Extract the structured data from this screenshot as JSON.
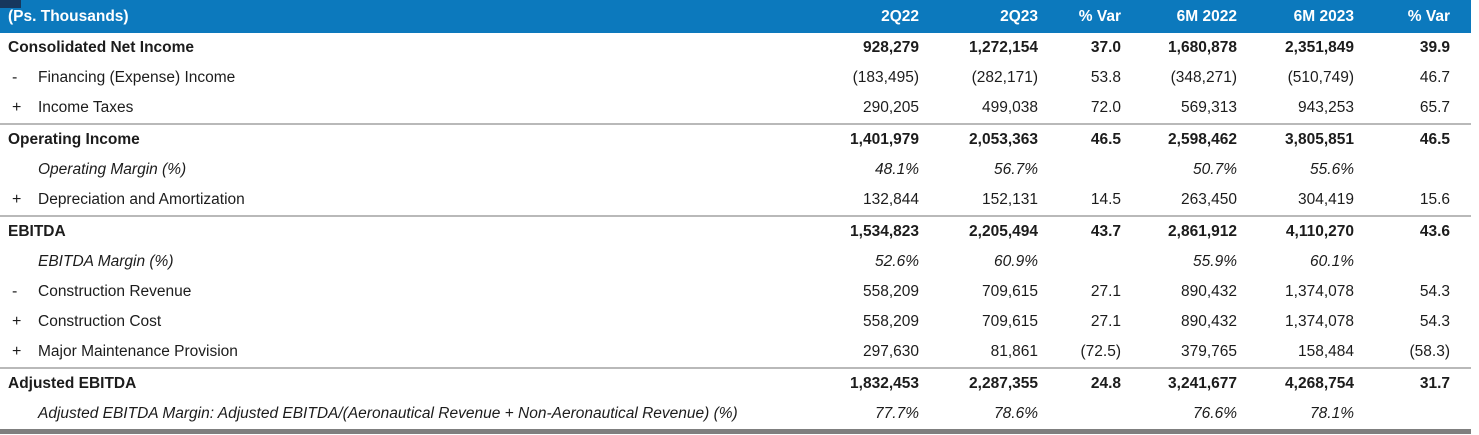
{
  "header": {
    "unit_label": "(Ps. Thousands)",
    "columns": [
      "2Q22",
      "2Q23",
      "% Var",
      "6M 2022",
      "6M 2023",
      "% Var"
    ]
  },
  "rows": [
    {
      "prefix": "",
      "label": "Consolidated Net Income",
      "emphasis": "bold",
      "separator_after": false,
      "values": [
        "928,279",
        "1,272,154",
        "37.0",
        "1,680,878",
        "2,351,849",
        "39.9"
      ]
    },
    {
      "prefix": "-",
      "label": "Financing (Expense) Income",
      "emphasis": "normal",
      "separator_after": false,
      "values": [
        "(183,495)",
        "(282,171)",
        "53.8",
        "(348,271)",
        "(510,749)",
        "46.7"
      ]
    },
    {
      "prefix": "+",
      "label": "Income Taxes",
      "emphasis": "normal",
      "separator_after": true,
      "values": [
        "290,205",
        "499,038",
        "72.0",
        "569,313",
        "943,253",
        "65.7"
      ]
    },
    {
      "prefix": "",
      "label": "Operating Income",
      "emphasis": "bold",
      "separator_after": false,
      "values": [
        "1,401,979",
        "2,053,363",
        "46.5",
        "2,598,462",
        "3,805,851",
        "46.5"
      ]
    },
    {
      "prefix": "",
      "label": "Operating Margin (%)",
      "emphasis": "italic",
      "separator_after": false,
      "values": [
        "48.1%",
        "56.7%",
        "",
        "50.7%",
        "55.6%",
        ""
      ]
    },
    {
      "prefix": "+",
      "label": "Depreciation and Amortization",
      "emphasis": "normal",
      "separator_after": true,
      "values": [
        "132,844",
        "152,131",
        "14.5",
        "263,450",
        "304,419",
        "15.6"
      ]
    },
    {
      "prefix": "",
      "label": "EBITDA",
      "emphasis": "bold",
      "separator_after": false,
      "values": [
        "1,534,823",
        "2,205,494",
        "43.7",
        "2,861,912",
        "4,110,270",
        "43.6"
      ]
    },
    {
      "prefix": "",
      "label": "EBITDA Margin (%)",
      "emphasis": "italic",
      "separator_after": false,
      "values": [
        "52.6%",
        "60.9%",
        "",
        "55.9%",
        "60.1%",
        ""
      ]
    },
    {
      "prefix": "-",
      "label": "Construction Revenue",
      "emphasis": "normal",
      "separator_after": false,
      "values": [
        "558,209",
        "709,615",
        "27.1",
        "890,432",
        "1,374,078",
        "54.3"
      ]
    },
    {
      "prefix": "+",
      "label": "Construction Cost",
      "emphasis": "normal",
      "separator_after": false,
      "values": [
        "558,209",
        "709,615",
        "27.1",
        "890,432",
        "1,374,078",
        "54.3"
      ]
    },
    {
      "prefix": "+",
      "label": "Major Maintenance Provision",
      "emphasis": "normal",
      "separator_after": true,
      "values": [
        "297,630",
        "81,861",
        "(72.5)",
        "379,765",
        "158,484",
        "(58.3)"
      ]
    },
    {
      "prefix": "",
      "label": "Adjusted EBITDA",
      "emphasis": "bold",
      "separator_after": false,
      "values": [
        "1,832,453",
        "2,287,355",
        "24.8",
        "3,241,677",
        "4,268,754",
        "31.7"
      ]
    },
    {
      "prefix": "",
      "label": "Adjusted EBITDA Margin: Adjusted EBITDA/(Aeronautical Revenue + Non-Aeronautical Revenue) (%)",
      "emphasis": "italic",
      "separator_after": false,
      "values": [
        "77.7%",
        "78.6%",
        "",
        "76.6%",
        "78.1%",
        ""
      ]
    }
  ],
  "colors": {
    "header_bg": "#0c79bd",
    "header_text": "#ffffff",
    "body_text": "#1c1c1c",
    "row_separator": "#b9b9b9",
    "bottom_border": "#7f7f7f",
    "corner_accent": "#17375d"
  }
}
